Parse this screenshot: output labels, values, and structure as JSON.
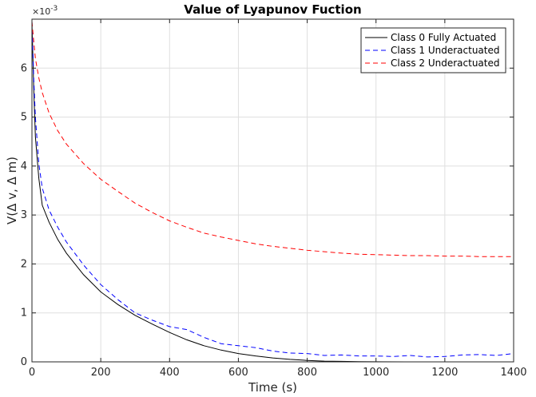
{
  "chart_data": {
    "type": "line",
    "title": "Value of Lyapunov Fuction",
    "xlabel": "Time (s)",
    "ylabel": "V(Δ v, Δ m)",
    "y_exponent_label": "×10",
    "y_exponent_power": "-3",
    "xlim": [
      0,
      1400
    ],
    "ylim": [
      0,
      7
    ],
    "xticks": [
      0,
      200,
      400,
      600,
      800,
      1000,
      1200,
      1400
    ],
    "xtick_labels": [
      "0",
      "200",
      "400",
      "600",
      "800",
      "1000",
      "1200",
      "1400"
    ],
    "yticks": [
      0,
      1,
      2,
      3,
      4,
      5,
      6
    ],
    "ytick_labels": [
      "0",
      "1",
      "2",
      "3",
      "4",
      "5",
      "6"
    ],
    "grid": true,
    "legend_position": "top-right",
    "series": [
      {
        "name": "Class 0 Fully Actuated",
        "color": "#000000",
        "dash": "solid",
        "x": [
          0,
          5,
          10,
          20,
          30,
          50,
          75,
          100,
          150,
          200,
          250,
          300,
          350,
          400,
          450,
          500,
          550,
          600,
          650,
          700,
          750,
          800,
          850,
          900,
          950,
          1000,
          1100,
          1200,
          1300,
          1400
        ],
        "y": [
          6.95,
          5.6,
          4.6,
          3.75,
          3.2,
          2.85,
          2.5,
          2.22,
          1.78,
          1.43,
          1.17,
          0.95,
          0.77,
          0.6,
          0.45,
          0.33,
          0.24,
          0.17,
          0.12,
          0.08,
          0.05,
          0.03,
          0.015,
          0.01,
          0.005,
          0.002,
          0.0,
          0.0,
          0.0,
          0.0
        ]
      },
      {
        "name": "Class 1 Underactuated",
        "color": "#0000ff",
        "dash": "dashed",
        "x": [
          0,
          5,
          10,
          20,
          30,
          50,
          75,
          100,
          150,
          200,
          250,
          300,
          350,
          400,
          450,
          500,
          550,
          600,
          650,
          700,
          750,
          800,
          850,
          900,
          950,
          1000,
          1050,
          1100,
          1150,
          1200,
          1250,
          1300,
          1350,
          1400
        ],
        "y": [
          6.95,
          5.8,
          5.0,
          4.05,
          3.55,
          3.1,
          2.75,
          2.45,
          1.98,
          1.58,
          1.27,
          1.0,
          0.85,
          0.72,
          0.66,
          0.5,
          0.37,
          0.33,
          0.29,
          0.22,
          0.18,
          0.17,
          0.13,
          0.14,
          0.12,
          0.12,
          0.11,
          0.13,
          0.1,
          0.11,
          0.14,
          0.15,
          0.13,
          0.17
        ]
      },
      {
        "name": "Class 2 Underactuated",
        "color": "#ff0000",
        "dash": "dashed",
        "x": [
          0,
          5,
          10,
          20,
          30,
          50,
          75,
          100,
          150,
          200,
          250,
          300,
          350,
          400,
          450,
          500,
          550,
          600,
          650,
          700,
          750,
          800,
          850,
          900,
          950,
          1000,
          1050,
          1100,
          1150,
          1200,
          1250,
          1300,
          1350,
          1400
        ],
        "y": [
          6.95,
          6.55,
          6.2,
          5.8,
          5.5,
          5.08,
          4.72,
          4.45,
          4.05,
          3.73,
          3.48,
          3.24,
          3.05,
          2.88,
          2.75,
          2.63,
          2.55,
          2.48,
          2.41,
          2.36,
          2.32,
          2.28,
          2.25,
          2.22,
          2.2,
          2.19,
          2.18,
          2.17,
          2.17,
          2.16,
          2.16,
          2.15,
          2.15,
          2.15
        ]
      }
    ]
  }
}
